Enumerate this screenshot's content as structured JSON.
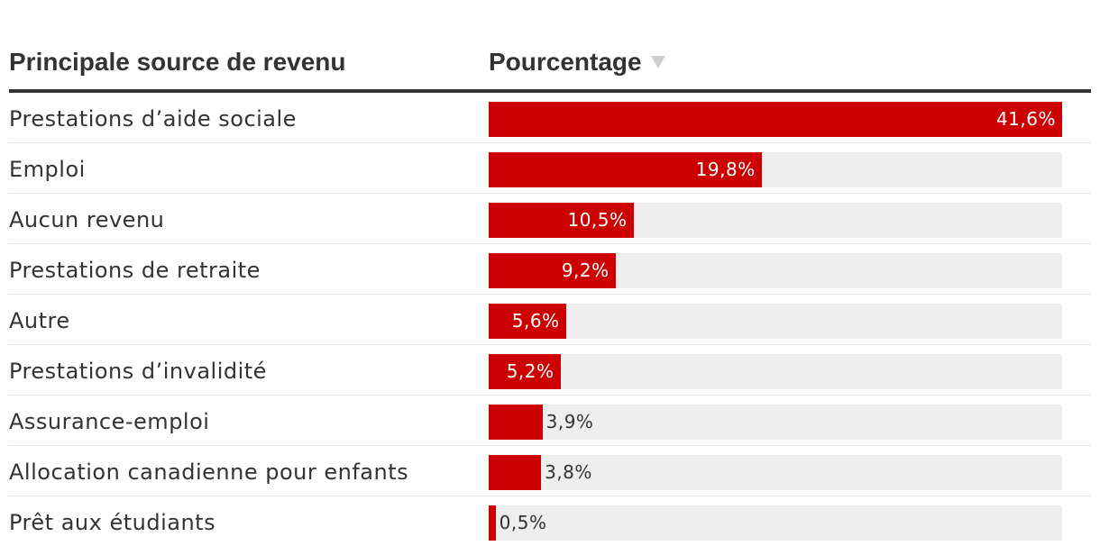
{
  "header": {
    "label_column": "Principale source de revenu",
    "value_column": "Pourcentage"
  },
  "colors": {
    "bar": "#cc0000",
    "track": "#eeeeee",
    "text": "#333333",
    "sort_icon": "#cfcfcf"
  },
  "chart_data": {
    "type": "bar",
    "orientation": "horizontal",
    "xlim": [
      0,
      41.6
    ],
    "categories": [
      "Prestations d’aide sociale",
      "Emploi",
      "Aucun revenu",
      "Prestations de retraite",
      "Autre",
      "Prestations d’invalidité",
      "Assurance-emploi",
      "Allocation canadienne pour enfants",
      "Prêt aux étudiants"
    ],
    "values": [
      41.6,
      19.8,
      10.5,
      9.2,
      5.6,
      5.2,
      3.9,
      3.8,
      0.5
    ],
    "value_labels": [
      "41,6%",
      "19,8%",
      "10,5%",
      "9,2%",
      "5,6%",
      "5,2%",
      "3,9%",
      "3,8%",
      "0,5%"
    ]
  }
}
